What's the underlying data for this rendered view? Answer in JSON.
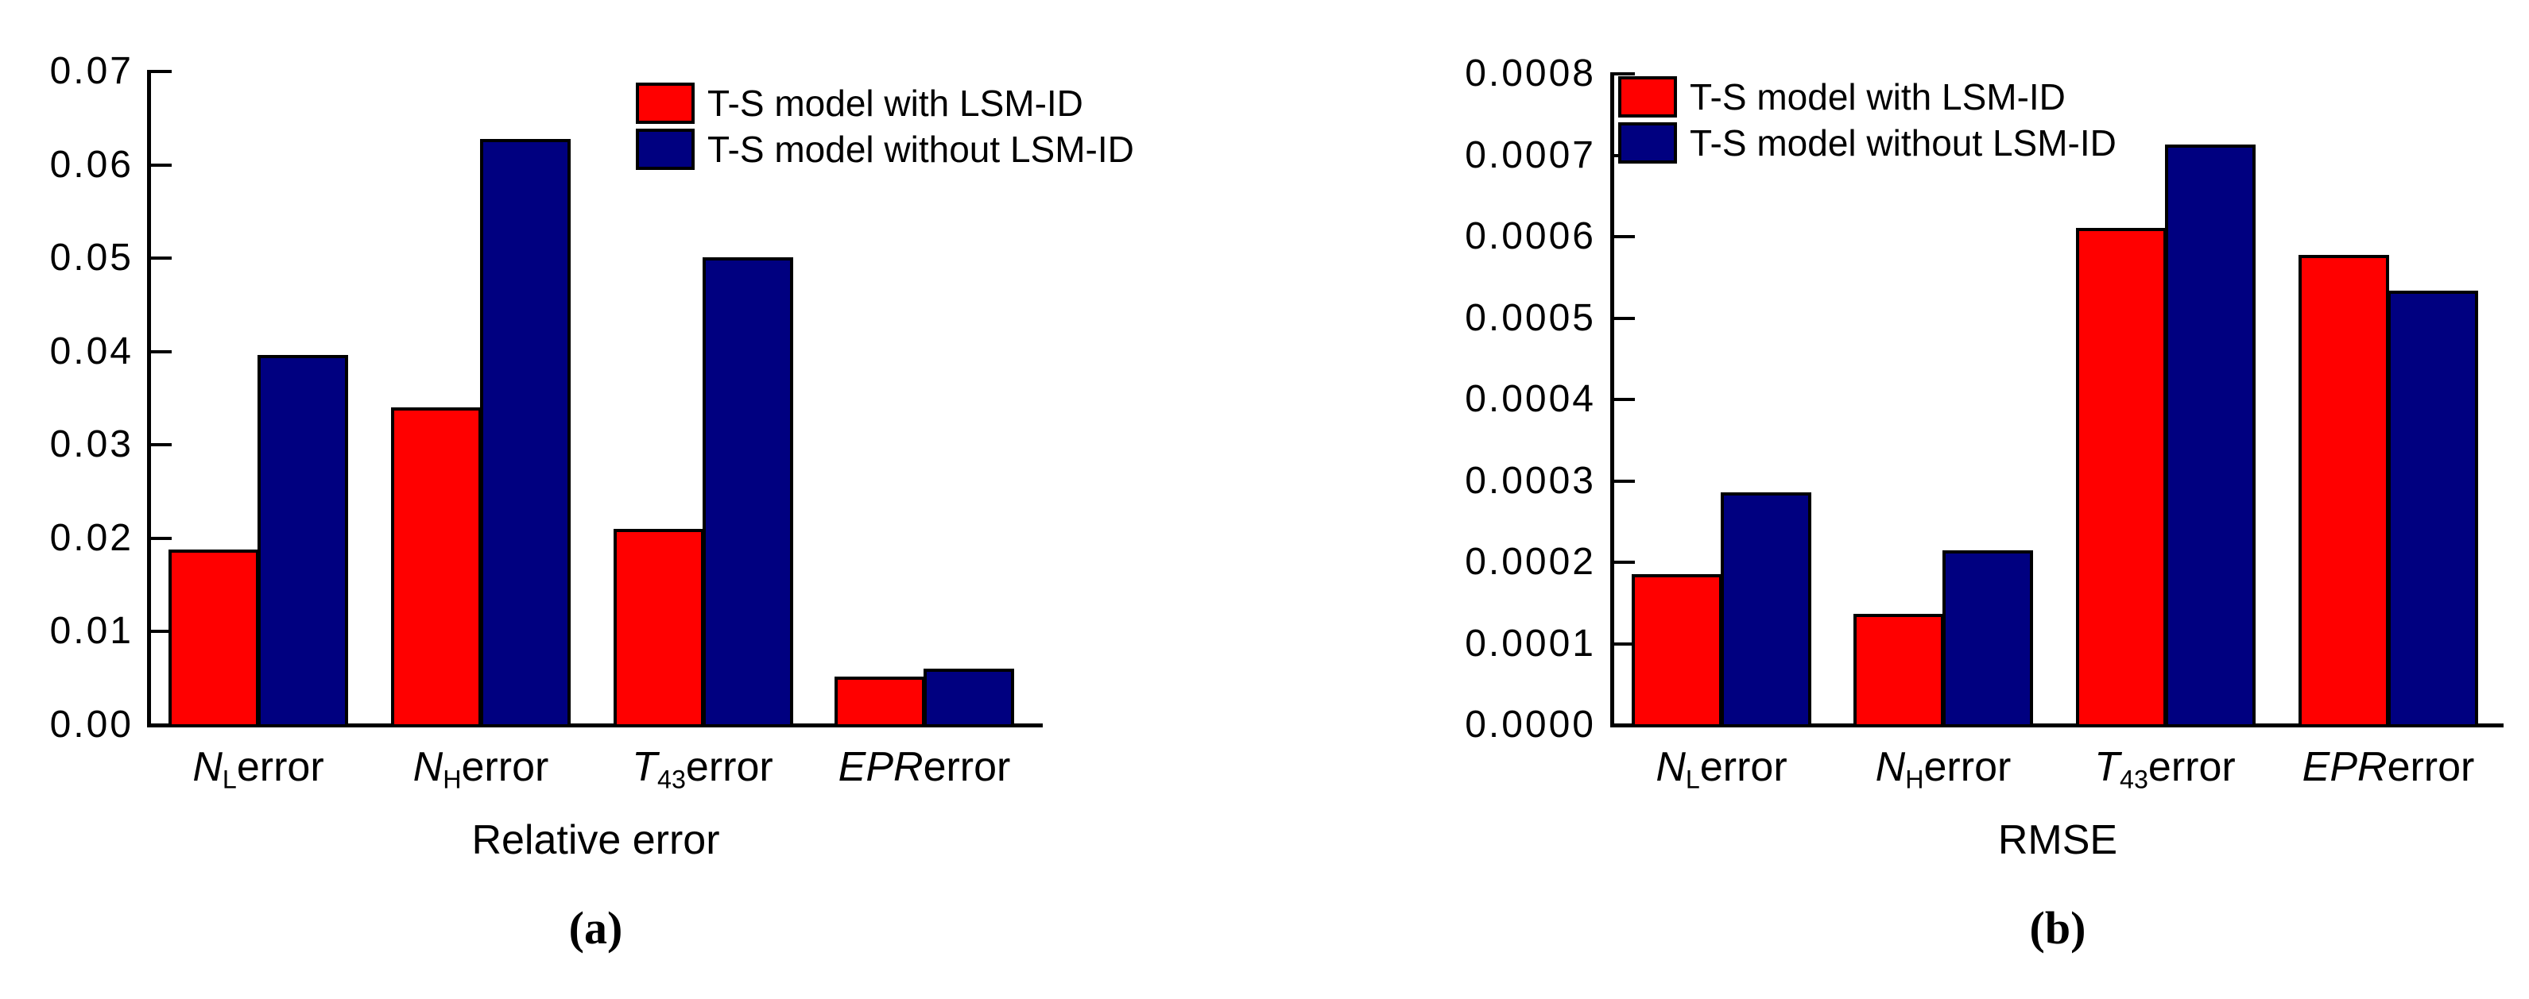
{
  "figure": {
    "background": "#ffffff",
    "axis_color": "#000000",
    "captions": {
      "a": "(a)",
      "b": "(b)"
    }
  },
  "legend": {
    "with_label": "T-S model with LSM-ID",
    "without_label": "T-S model without LSM-ID",
    "with_color": "#ff0000",
    "without_color": "#000080"
  },
  "chart_data": [
    {
      "type": "bar",
      "title": "Relative error",
      "caption": "(a)",
      "categories": [
        {
          "base": "N",
          "italic": true,
          "sub": "L",
          "suffix": "error"
        },
        {
          "base": "N",
          "italic": true,
          "sub": "H",
          "suffix": "error"
        },
        {
          "base": "T",
          "italic": true,
          "sub": "43",
          "suffix": "error"
        },
        {
          "base": "EPR",
          "italic": true,
          "sub": "",
          "suffix": "error"
        }
      ],
      "series": [
        {
          "name": "T-S model with LSM-ID",
          "color": "#ff0000",
          "values": [
            0.0188,
            0.034,
            0.021,
            0.0052
          ]
        },
        {
          "name": "T-S model without LSM-ID",
          "color": "#000080",
          "values": [
            0.0396,
            0.0628,
            0.0501,
            0.006
          ]
        }
      ],
      "ylim": [
        0,
        0.07
      ],
      "ytick_step": 0.01,
      "yticks": [
        "0.00",
        "0.01",
        "0.02",
        "0.03",
        "0.04",
        "0.05",
        "0.06",
        "0.07"
      ],
      "grid": false,
      "legend_position": "top-center-inside"
    },
    {
      "type": "bar",
      "title": "RMSE",
      "caption": "(b)",
      "categories": [
        {
          "base": "N",
          "italic": true,
          "sub": "L",
          "suffix": "error"
        },
        {
          "base": "N",
          "italic": true,
          "sub": "H",
          "suffix": "error"
        },
        {
          "base": "T",
          "italic": true,
          "sub": "43",
          "suffix": "error"
        },
        {
          "base": "EPR",
          "italic": true,
          "sub": "",
          "suffix": "error"
        }
      ],
      "series": [
        {
          "name": "T-S model with LSM-ID",
          "color": "#ff0000",
          "values": [
            0.000185,
            0.000137,
            0.000611,
            0.000578
          ]
        },
        {
          "name": "T-S model without LSM-ID",
          "color": "#000080",
          "values": [
            0.000286,
            0.000215,
            0.000713,
            0.000534
          ]
        }
      ],
      "ylim": [
        0,
        0.0008
      ],
      "ytick_step": 0.0001,
      "yticks": [
        "0.0000",
        "0.0001",
        "0.0002",
        "0.0003",
        "0.0004",
        "0.0005",
        "0.0006",
        "0.0007",
        "0.0008"
      ],
      "grid": false,
      "legend_position": "top-left-inside"
    }
  ]
}
